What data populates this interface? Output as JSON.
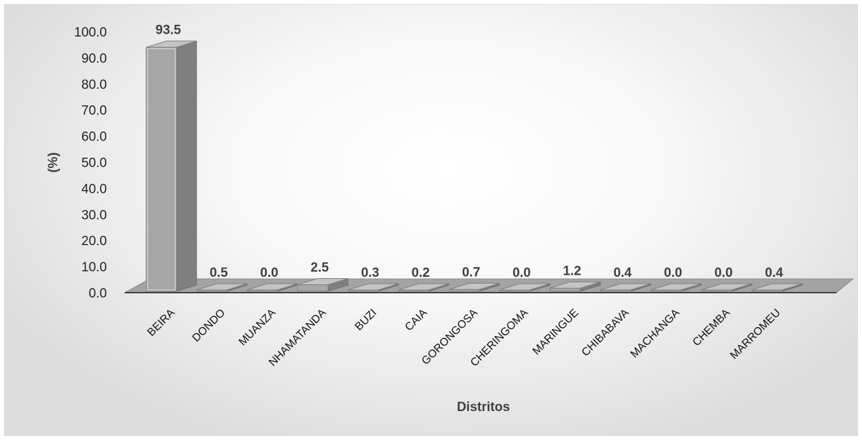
{
  "chart_data": {
    "type": "bar",
    "categories": [
      "BEIRA",
      "DONDO",
      "MUANZA",
      "NHAMATANDA",
      "BUZI",
      "CAIA",
      "GORONGOSA",
      "CHERINGOMA",
      "MARINGUE",
      "CHIBABAVA",
      "MACHANGA",
      "CHEMBA",
      "MARROMEU"
    ],
    "values": [
      93.5,
      0.5,
      0.0,
      2.5,
      0.3,
      0.2,
      0.7,
      0.0,
      1.2,
      0.4,
      0.0,
      0.0,
      0.4
    ],
    "value_labels": [
      "93.5",
      "0.5",
      "0.0",
      "2.5",
      "0.3",
      "0.2",
      "0.7",
      "0.0",
      "1.2",
      "0.4",
      "0.0",
      "0.0",
      "0.4"
    ],
    "y_ticks": [
      "0.0",
      "10.0",
      "20.0",
      "30.0",
      "40.0",
      "50.0",
      "60.0",
      "70.0",
      "80.0",
      "90.0",
      "100.0"
    ],
    "ylim": [
      0,
      100
    ],
    "xlabel": "Distritos",
    "ylabel": "(%)",
    "title": "",
    "style": "3d-column",
    "grid": false,
    "colors": {
      "bar_front": "#a6a6a6",
      "bar_side": "#7f7f7f",
      "bar_top": "#c4c4c4",
      "floor": "#a3a3a3",
      "axis": "#404040"
    }
  }
}
